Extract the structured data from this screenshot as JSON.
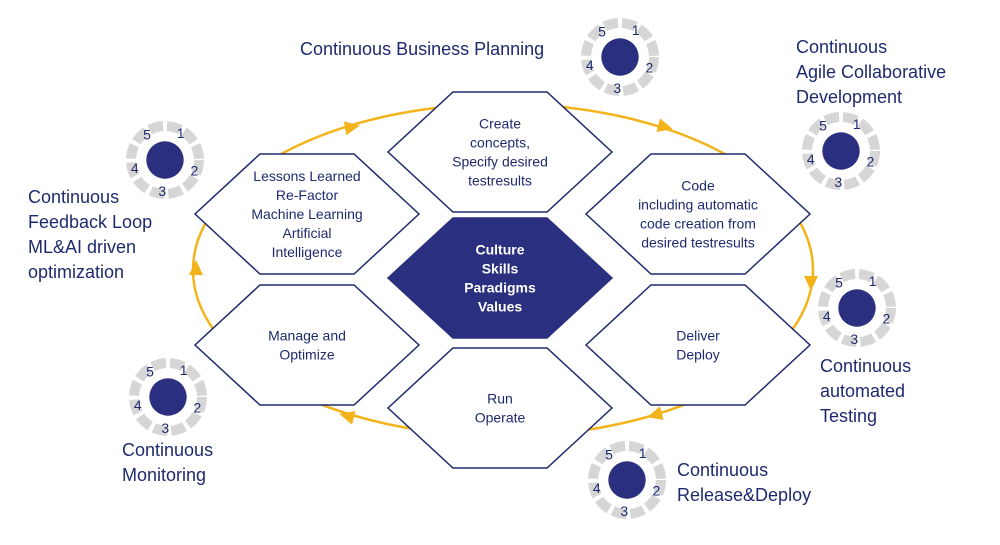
{
  "colors": {
    "navy": "#2b2f7f",
    "hex_stroke": "#1f2a6e",
    "text": "#1f2a6e",
    "arrow": "#f3b41b",
    "cog": "#d6d6d6"
  },
  "center": {
    "lines": [
      "Culture",
      "Skills",
      "Paradigms",
      "Values"
    ]
  },
  "hexagons": [
    {
      "id": "create",
      "lines": [
        "Create",
        "concepts,",
        "Specify desired",
        "testresults"
      ]
    },
    {
      "id": "code",
      "lines": [
        "Code",
        "including automatic",
        "code creation from",
        "desired testresults"
      ]
    },
    {
      "id": "deliver",
      "lines": [
        "Deliver",
        "Deploy"
      ]
    },
    {
      "id": "run",
      "lines": [
        "Run",
        "Operate"
      ]
    },
    {
      "id": "manage",
      "lines": [
        "Manage and",
        "Optimize"
      ]
    },
    {
      "id": "lessons",
      "lines": [
        "Lessons Learned",
        "Re-Factor",
        "Machine Learning",
        "Artificial",
        "Intelligence"
      ]
    }
  ],
  "outer_labels": [
    {
      "id": "planning",
      "lines": [
        "Continuous Business Planning"
      ]
    },
    {
      "id": "agile",
      "lines": [
        "Continuous",
        "Agile Collaborative",
        "Development"
      ]
    },
    {
      "id": "testing",
      "lines": [
        "Continuous",
        "automated",
        "Testing"
      ]
    },
    {
      "id": "release",
      "lines": [
        "Continuous",
        "Release&Deploy"
      ]
    },
    {
      "id": "monitoring",
      "lines": [
        "Continuous",
        "Monitoring"
      ]
    },
    {
      "id": "feedback",
      "lines": [
        "Continuous",
        "Feedback Loop",
        "ML&AI driven",
        "optimization"
      ]
    }
  ],
  "cog_numbers": [
    "1",
    "2",
    "3",
    "4",
    "5"
  ]
}
